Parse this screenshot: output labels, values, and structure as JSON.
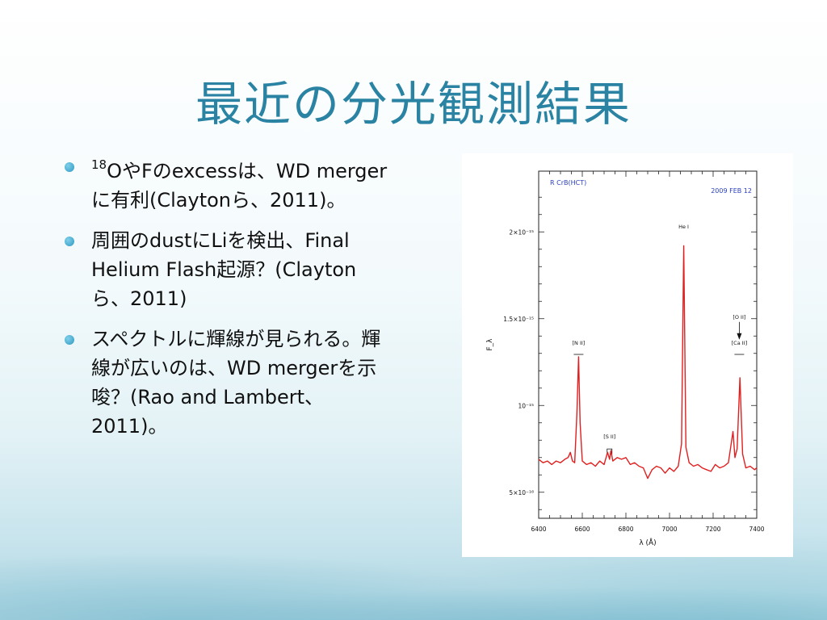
{
  "slide": {
    "title": "最近の分光観測結果",
    "bullets": [
      {
        "sup": "18",
        "text": "OやFのexcessは、WD mergerに有利(Claytonら、2011)。"
      },
      {
        "text": "周囲のdustにLiを検出、Final Helium Flash起源？(Claytonら、2011)"
      },
      {
        "text": "スペクトルに輝線が見られる。輝線が広いのは、WD mergerを示唆？(Rao and Lambert、2011)。"
      }
    ]
  },
  "chart_data": {
    "type": "line",
    "title": "R CrB(HCT)",
    "date_label": "2009 FEB 12",
    "xlabel": "λ (Å)",
    "ylabel": "F_λ",
    "xlim": [
      6400,
      7400
    ],
    "ylim": [
      3.5e-16,
      2.35e-15
    ],
    "x_ticks": [
      "6400",
      "6600",
      "6800",
      "7000",
      "7200",
      "7400"
    ],
    "x_tick_values": [
      6400,
      6600,
      6800,
      7000,
      7200,
      7400
    ],
    "y_ticks": [
      "5×10⁻¹⁶",
      "10⁻¹⁵",
      "1.5×10⁻¹⁵",
      "2×10⁻¹⁵"
    ],
    "y_tick_values": [
      5e-16,
      1e-15,
      1.5e-15,
      2e-15
    ],
    "annotations": [
      {
        "label": "[N II]",
        "x": 6583,
        "y": 1.35e-15
      },
      {
        "label": "[S II]",
        "x": 6725,
        "y": 8.1e-16
      },
      {
        "label": "He I",
        "x": 7065,
        "y": 2.02e-15
      },
      {
        "label": "[O II]",
        "x": 7320,
        "y": 1.5e-15
      },
      {
        "label": "[Ca II]",
        "x": 7320,
        "y": 1.35e-15
      }
    ],
    "series": [
      {
        "color": "#e02020",
        "x": [
          6400,
          6420,
          6440,
          6460,
          6480,
          6500,
          6520,
          6535,
          6545,
          6555,
          6565,
          6575,
          6583,
          6590,
          6600,
          6620,
          6640,
          6660,
          6680,
          6700,
          6716,
          6725,
          6731,
          6740,
          6760,
          6780,
          6800,
          6820,
          6840,
          6860,
          6880,
          6900,
          6920,
          6940,
          6960,
          6980,
          7000,
          7020,
          7040,
          7055,
          7065,
          7075,
          7090,
          7110,
          7130,
          7150,
          7170,
          7190,
          7210,
          7230,
          7250,
          7270,
          7291,
          7300,
          7310,
          7323,
          7335,
          7350,
          7370,
          7390,
          7400
        ],
        "y": [
          6.9e-16,
          6.7e-16,
          6.8e-16,
          6.6e-16,
          6.8e-16,
          6.7e-16,
          6.9e-16,
          7e-16,
          7.3e-16,
          6.8e-16,
          6.7e-16,
          9.5e-16,
          1.28e-15,
          9e-16,
          6.8e-16,
          6.6e-16,
          6.7e-16,
          6.5e-16,
          6.8e-16,
          6.6e-16,
          7.3e-16,
          6.9e-16,
          7.4e-16,
          6.8e-16,
          7e-16,
          6.9e-16,
          7e-16,
          6.6e-16,
          6.7e-16,
          6.5e-16,
          6.4e-16,
          5.8e-16,
          6.3e-16,
          6.5e-16,
          6.4e-16,
          6.1e-16,
          6.4e-16,
          6.2e-16,
          6.5e-16,
          7.8e-16,
          1.92e-15,
          7.6e-16,
          6.7e-16,
          6.5e-16,
          6.6e-16,
          6.4e-16,
          6.3e-16,
          6.2e-16,
          6.6e-16,
          6.4e-16,
          6.5e-16,
          6.7e-16,
          8.5e-16,
          7e-16,
          7.5e-16,
          1.16e-15,
          7.2e-16,
          6.4e-16,
          6.5e-16,
          6.3e-16,
          6.4e-16
        ]
      }
    ]
  }
}
